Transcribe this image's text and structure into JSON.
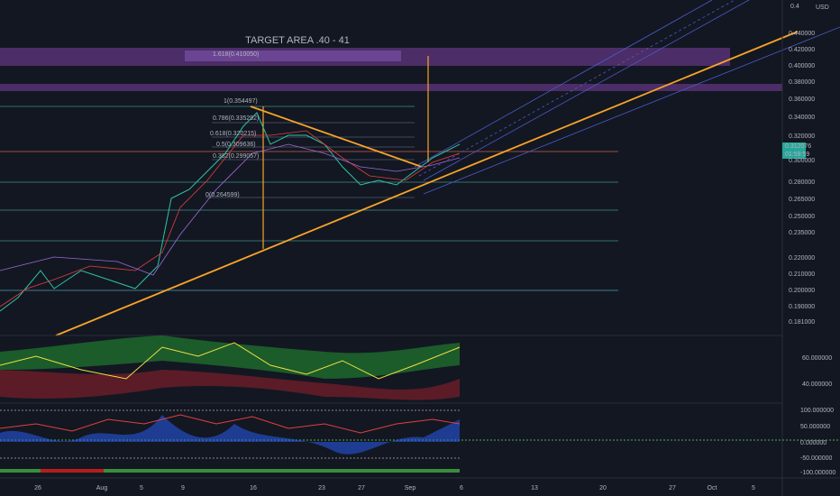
{
  "header": {
    "currency": "USD",
    "top_price": "0.4"
  },
  "price_axis": [
    "0.440000",
    "0.420000",
    "0.400000",
    "0.380000",
    "0.360000",
    "0.340000",
    "0.320000",
    "0.300000",
    "0.280000",
    "0.265000",
    "0.250000",
    "0.235000",
    "0.220000",
    "0.210000",
    "0.200000",
    "0.190000",
    "0.181000"
  ],
  "last_price": {
    "price": "0.312076",
    "countdown": "01:59:59"
  },
  "time_axis": [
    "26",
    "Aug",
    "5",
    "9",
    "16",
    "23",
    "27",
    "Sep",
    "6",
    "13",
    "20",
    "27",
    "Oct",
    "5"
  ],
  "annotations": {
    "target": "TARGET AREA .40 - 41"
  },
  "fib_labels": [
    "1.618(0.410050)",
    "1(0.354497)",
    "0.786(0.335292)",
    "0.618(0.320215)",
    "0.5(0.309636)",
    "0.382(0.299057)",
    "0(0.264599)"
  ],
  "indicator1_axis": [
    "60.000000",
    "40.000000"
  ],
  "indicator2_axis": [
    "100.000000",
    "50.000000",
    "0.000000",
    "-50.000000",
    "-100.000000"
  ]
}
